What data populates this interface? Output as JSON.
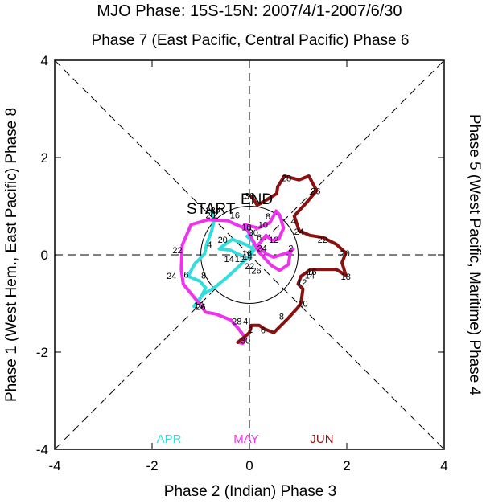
{
  "chart_data": {
    "type": "line",
    "title": "MJO Phase: 15S-15N: 2007/4/1-2007/6/30",
    "top_label": "Phase 7 (East Pacific, Central Pacific) Phase 6",
    "bottom_label": "Phase 2 (Indian) Phase 3",
    "left_label": "Phase 1 (West Hem., East Pacific) Phase 8",
    "right_label": "Phase 5 (West Pacific, Maritime) Phase 4",
    "xlim": [
      -4,
      4
    ],
    "ylim": [
      -4,
      4
    ],
    "x_ticks": [
      -4,
      -2,
      0,
      2,
      4
    ],
    "y_ticks": [
      -4,
      -2,
      0,
      2,
      4
    ],
    "x_tick_labels": [
      "-4",
      "-2",
      "0",
      "2",
      "4"
    ],
    "y_tick_labels": [
      "-4",
      "-2",
      "0",
      "2",
      "4"
    ],
    "unit_circle_radius": 1,
    "start_label": "START",
    "end_label": "END",
    "grid": false,
    "legend_position": "bottom-inside",
    "series": [
      {
        "name": "APR",
        "color": "#33dddd",
        "points": [
          [
            -0.78,
            0.9
          ],
          [
            -0.72,
            0.72
          ],
          [
            -0.78,
            0.48
          ],
          [
            -0.88,
            0.22
          ],
          [
            -0.92,
            0.02
          ],
          [
            -1.12,
            -0.18
          ],
          [
            -1.26,
            -0.44
          ],
          [
            -1.02,
            -0.54
          ],
          [
            -0.9,
            -0.68
          ],
          [
            -1.0,
            -0.88
          ],
          [
            -1.1,
            -1.04
          ],
          [
            -1.14,
            -1.06
          ],
          [
            -0.96,
            -0.82
          ],
          [
            -0.7,
            -0.66
          ],
          [
            -0.48,
            -0.48
          ],
          [
            -0.28,
            -0.3
          ],
          [
            -0.08,
            -0.1
          ],
          [
            0.04,
            0.02
          ],
          [
            0.1,
            0.1
          ],
          [
            -0.05,
            0.2
          ],
          [
            -0.35,
            0.32
          ],
          [
            -0.55,
            0.18
          ],
          [
            -0.62,
            0.12
          ],
          [
            -0.4,
            0.1
          ],
          [
            -0.2,
            0.0
          ],
          [
            0.0,
            -0.08
          ],
          [
            0.1,
            0.25
          ],
          [
            -0.05,
            0.38
          ],
          [
            0.02,
            0.42
          ],
          [
            -0.1,
            0.62
          ]
        ],
        "labels": [
          {
            "day": "2",
            "x": -0.7,
            "y": 0.8
          },
          {
            "day": "4",
            "x": -0.82,
            "y": 0.2
          },
          {
            "day": "6",
            "x": -1.3,
            "y": -0.42
          },
          {
            "day": "8",
            "x": -0.94,
            "y": -0.44
          },
          {
            "day": "10",
            "x": -1.04,
            "y": -1.05
          },
          {
            "day": "12",
            "x": -0.2,
            "y": -0.1
          },
          {
            "day": "14",
            "x": -0.42,
            "y": -0.1
          },
          {
            "day": "16",
            "x": -0.05,
            "y": 0.02
          },
          {
            "day": "18",
            "x": -0.06,
            "y": 0.55
          },
          {
            "day": "20",
            "x": -0.55,
            "y": 0.3
          },
          {
            "day": "22",
            "x": 0.0,
            "y": -0.25
          },
          {
            "day": "24",
            "x": 0.26,
            "y": 0.12
          },
          {
            "day": "26",
            "x": 0.14,
            "y": -0.34
          },
          {
            "day": "28",
            "x": -0.8,
            "y": 0.9
          },
          {
            "day": "30",
            "x": 0.08,
            "y": 0.45
          }
        ]
      },
      {
        "name": "MAY",
        "color": "#ee33ee",
        "points": [
          [
            -0.1,
            0.62
          ],
          [
            0.18,
            0.55
          ],
          [
            0.42,
            0.66
          ],
          [
            0.55,
            0.9
          ],
          [
            0.62,
            0.82
          ],
          [
            0.7,
            0.55
          ],
          [
            0.6,
            0.32
          ],
          [
            0.46,
            0.3
          ],
          [
            0.34,
            0.4
          ],
          [
            0.18,
            0.2
          ],
          [
            0.34,
            0.02
          ],
          [
            0.5,
            -0.05
          ],
          [
            0.8,
            0.05
          ],
          [
            0.9,
            0.12
          ],
          [
            0.85,
            0.1
          ],
          [
            0.8,
            -0.2
          ],
          [
            0.62,
            -0.32
          ],
          [
            0.45,
            -0.22
          ],
          [
            0.2,
            0.05
          ],
          [
            -0.05,
            0.52
          ],
          [
            -0.45,
            0.7
          ],
          [
            -0.85,
            0.72
          ],
          [
            -1.2,
            0.62
          ],
          [
            -1.38,
            0.2
          ],
          [
            -1.4,
            -0.3
          ],
          [
            -1.36,
            -0.6
          ],
          [
            -1.05,
            -0.98
          ],
          [
            -0.9,
            -1.18
          ],
          [
            -0.68,
            -1.22
          ],
          [
            -0.38,
            -1.34
          ],
          [
            -0.2,
            -1.55
          ],
          [
            -0.08,
            -1.72
          ],
          [
            -0.14,
            -1.82
          ],
          [
            -0.24,
            -1.8
          ]
        ],
        "labels": [
          {
            "day": "2",
            "x": 0.85,
            "y": 0.12
          },
          {
            "day": "4",
            "x": 0.9,
            "y": 0.68
          },
          {
            "day": "6",
            "x": 0.2,
            "y": 0.35
          },
          {
            "day": "8",
            "x": 0.38,
            "y": 0.78
          },
          {
            "day": "10",
            "x": 0.28,
            "y": 0.6
          },
          {
            "day": "12",
            "x": 0.5,
            "y": 0.3
          },
          {
            "day": "14",
            "x": -0.04,
            "y": -0.05
          },
          {
            "day": "16",
            "x": -0.3,
            "y": 0.8
          },
          {
            "day": "18",
            "x": -0.7,
            "y": 0.92
          },
          {
            "day": "20",
            "x": -0.8,
            "y": 0.8
          },
          {
            "day": "22",
            "x": -1.48,
            "y": 0.08
          },
          {
            "day": "24",
            "x": -1.6,
            "y": -0.45
          },
          {
            "day": "26",
            "x": -1.0,
            "y": -1.08
          },
          {
            "day": "28",
            "x": -0.26,
            "y": -1.38
          },
          {
            "day": "30",
            "x": -0.08,
            "y": -1.78
          }
        ]
      },
      {
        "name": "JUN",
        "color": "#8b1010",
        "points": [
          [
            -0.24,
            -1.8
          ],
          [
            -0.14,
            -1.72
          ],
          [
            0.0,
            -1.6
          ],
          [
            0.04,
            -1.45
          ],
          [
            0.2,
            -1.45
          ],
          [
            0.3,
            -1.52
          ],
          [
            0.5,
            -1.6
          ],
          [
            0.8,
            -1.3
          ],
          [
            1.0,
            -1.08
          ],
          [
            1.06,
            -0.98
          ],
          [
            1.1,
            -0.7
          ],
          [
            1.0,
            -0.6
          ],
          [
            1.06,
            -0.44
          ],
          [
            1.26,
            -0.3
          ],
          [
            1.5,
            -0.3
          ],
          [
            1.78,
            -0.3
          ],
          [
            1.98,
            -0.42
          ],
          [
            1.9,
            -0.16
          ],
          [
            1.98,
            0.04
          ],
          [
            1.78,
            0.22
          ],
          [
            1.5,
            0.36
          ],
          [
            1.24,
            0.4
          ],
          [
            1.02,
            0.5
          ],
          [
            0.92,
            0.8
          ],
          [
            1.16,
            1.06
          ],
          [
            1.38,
            1.32
          ],
          [
            1.22,
            1.62
          ],
          [
            1.02,
            1.54
          ],
          [
            0.72,
            1.62
          ],
          [
            0.58,
            1.4
          ],
          [
            0.56,
            1.26
          ],
          [
            0.3,
            1.1
          ],
          [
            0.16,
            1.02
          ],
          [
            0.05,
            1.2
          ]
        ],
        "labels": [
          {
            "day": "2",
            "x": 0.02,
            "y": -1.55
          },
          {
            "day": "4",
            "x": -0.08,
            "y": -1.38
          },
          {
            "day": "6",
            "x": 0.28,
            "y": -1.56
          },
          {
            "day": "8",
            "x": 0.66,
            "y": -1.28
          },
          {
            "day": "10",
            "x": 1.1,
            "y": -1.02
          },
          {
            "day": "12",
            "x": 1.08,
            "y": -0.58
          },
          {
            "day": "14",
            "x": 1.24,
            "y": -0.44
          },
          {
            "day": "16",
            "x": 1.28,
            "y": -0.36
          },
          {
            "day": "18",
            "x": 1.98,
            "y": -0.46
          },
          {
            "day": "20",
            "x": 1.96,
            "y": 0.02
          },
          {
            "day": "22",
            "x": 1.5,
            "y": 0.3
          },
          {
            "day": "24",
            "x": 1.02,
            "y": 0.46
          },
          {
            "day": "26",
            "x": 1.36,
            "y": 1.3
          },
          {
            "day": "28",
            "x": 0.76,
            "y": 1.56
          },
          {
            "day": "30",
            "x": 0.0,
            "y": 1.2
          }
        ]
      }
    ]
  }
}
